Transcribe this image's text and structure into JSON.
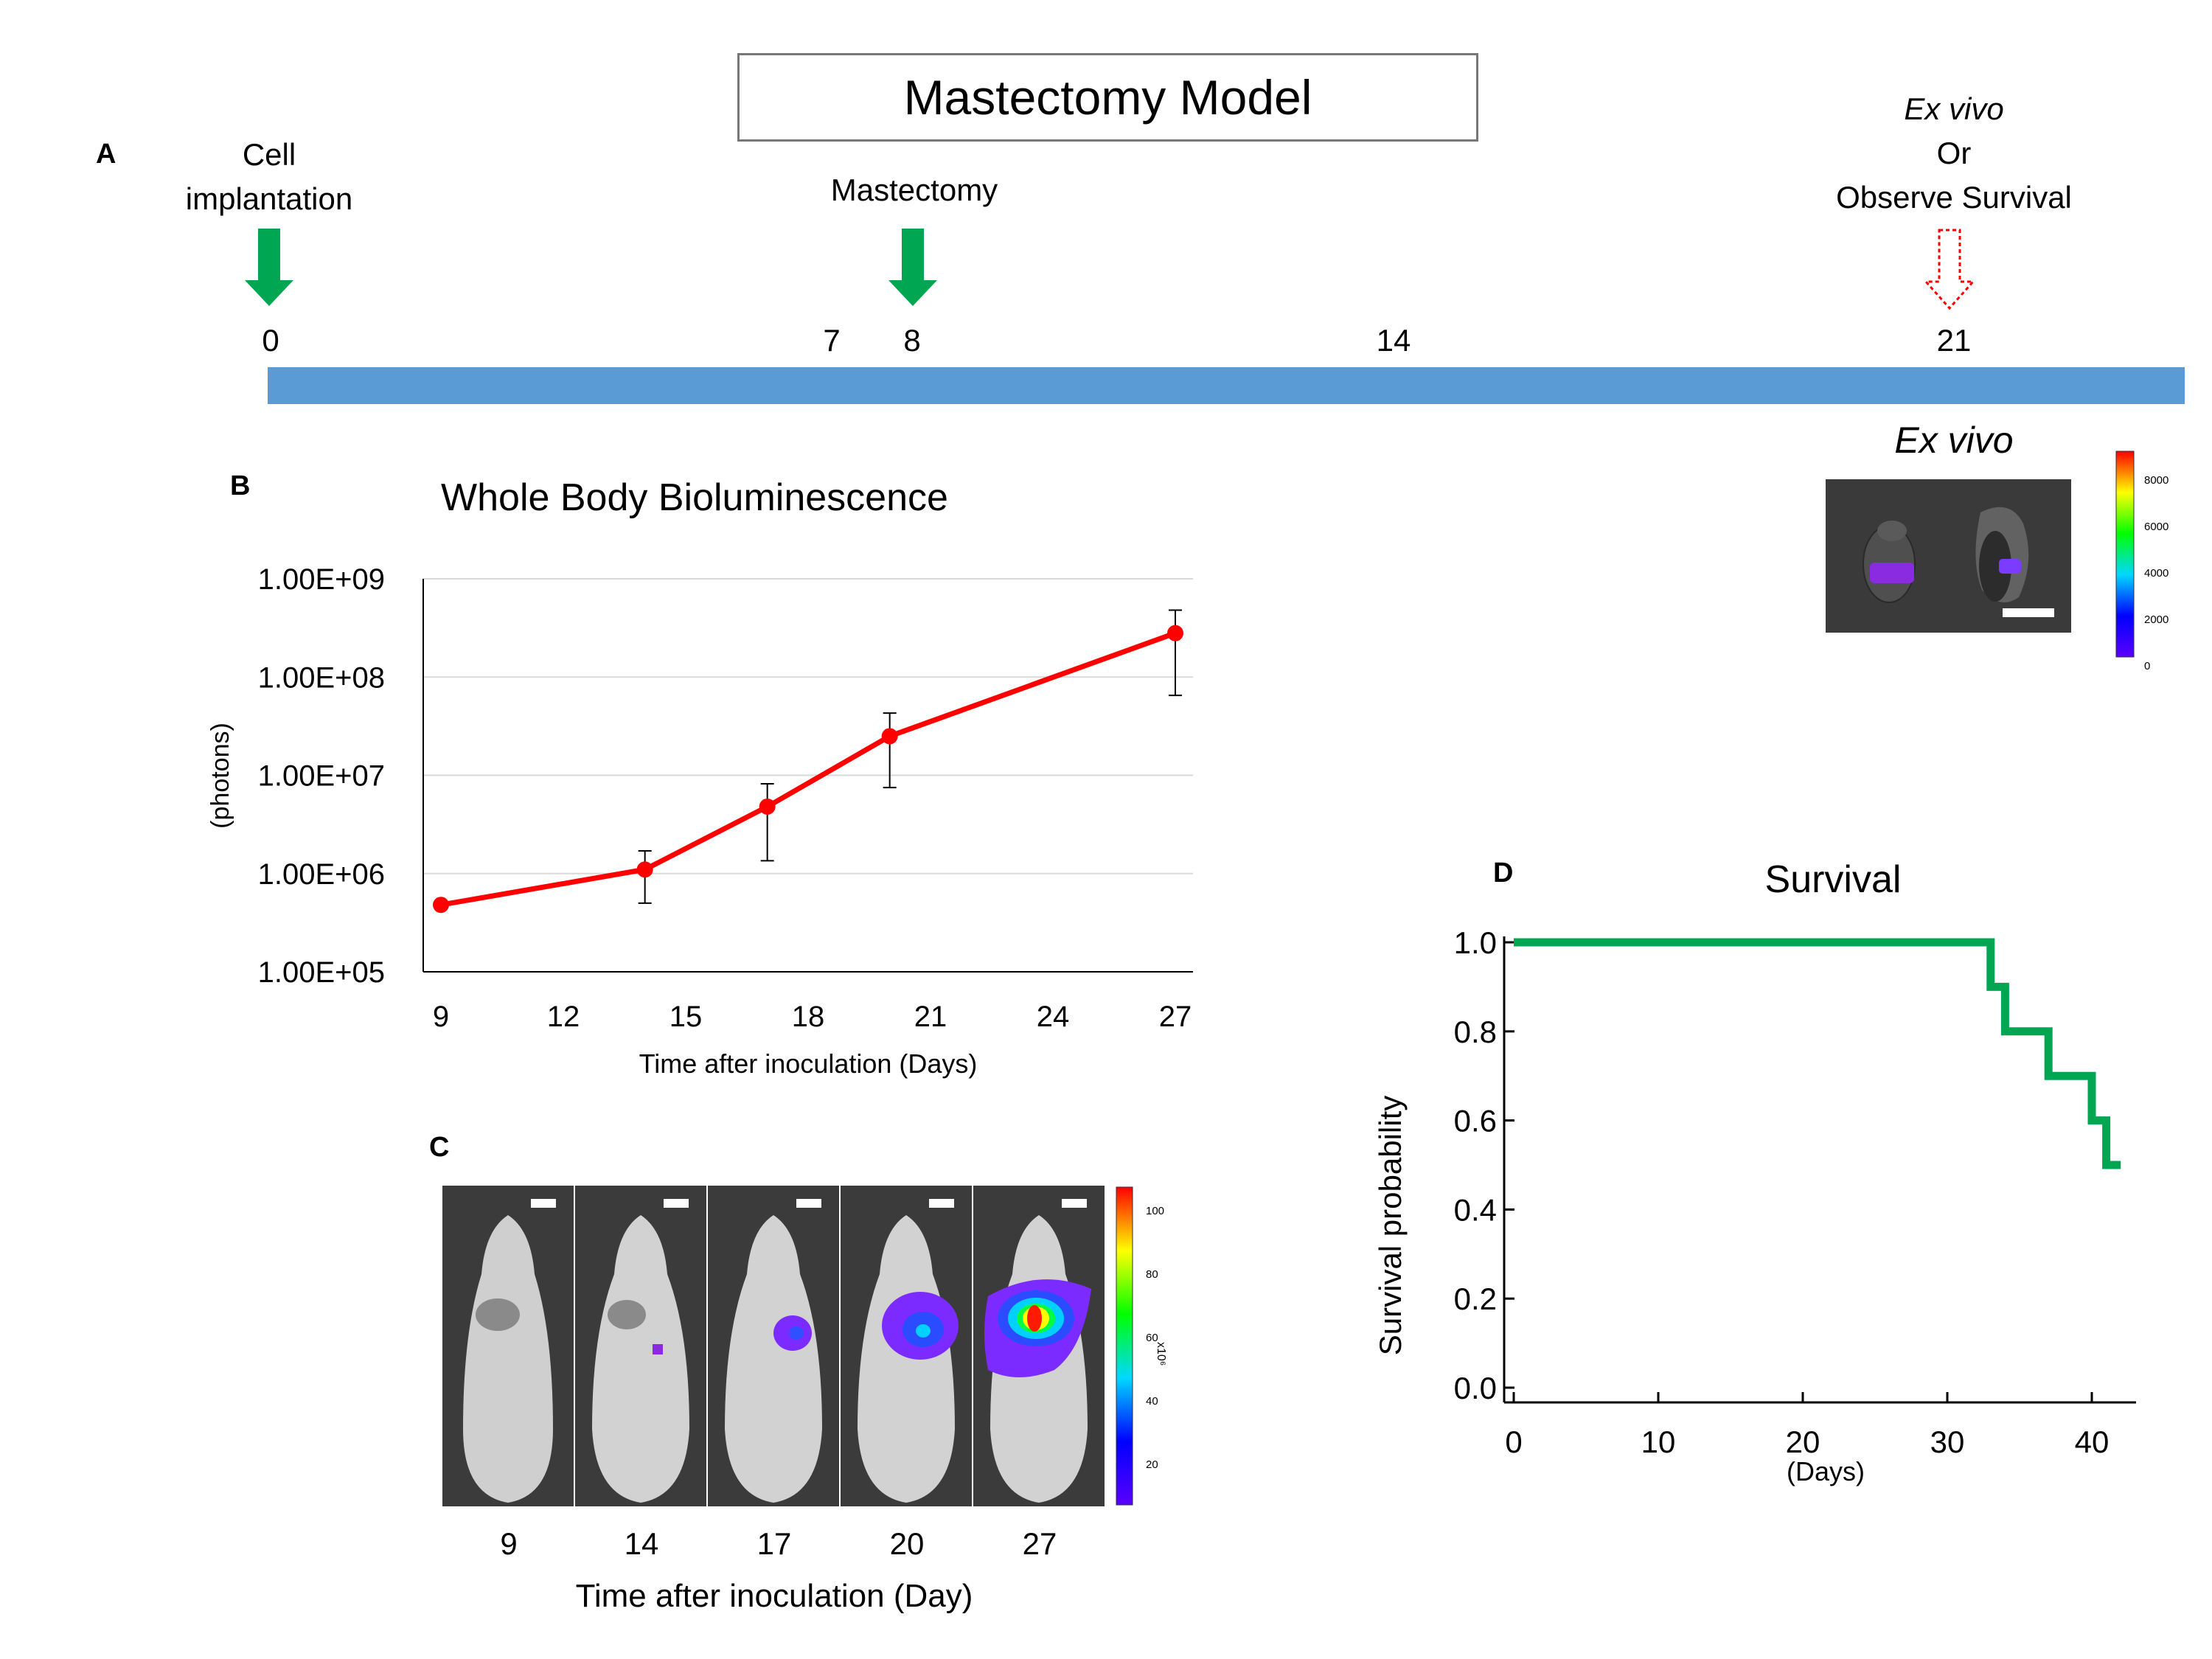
{
  "panel_a": {
    "letter": "A",
    "title": "Mastectomy Model",
    "events": [
      {
        "label": "Cell\nimplantation"
      },
      {
        "label": "Mastectomy"
      },
      {
        "label_italic": "Ex vivo",
        "label": "Or\nObserve Survival"
      }
    ],
    "days": [
      "0",
      "7",
      "8",
      "14",
      "21"
    ],
    "arrow_colors": {
      "solid": "#00a651",
      "dotted": "#ff0000"
    },
    "bar_color": "#5b9bd5"
  },
  "ex_vivo": {
    "title": "Ex vivo",
    "colorbar_ticks": [
      "8000",
      "6000",
      "4000",
      "2000",
      "0"
    ]
  },
  "panel_b": {
    "letter": "B",
    "chart_data": {
      "type": "line",
      "title": "Whole Body Bioluminescence",
      "xlabel": "Time after inoculation (Days)",
      "ylabel": "(photons)",
      "yscale": "log",
      "ylim": [
        100000,
        1000000000
      ],
      "xlim": [
        9,
        27
      ],
      "x_ticks": [
        "9",
        "12",
        "15",
        "18",
        "21",
        "24",
        "27"
      ],
      "y_ticks": [
        "1.00E+09",
        "1.00E+08",
        "1.00E+07",
        "1.00E+06",
        "1.00E+05"
      ],
      "series": [
        {
          "name": "Whole Body Bioluminescence",
          "color": "#ff0000",
          "x": [
            9,
            14,
            17,
            20,
            27
          ],
          "y": [
            480000,
            1100000,
            4800000,
            25000000,
            280000000
          ],
          "err_low": [
            480000,
            500000,
            1350000,
            7500000,
            65000000
          ],
          "err_high": [
            480000,
            1700000,
            8200000,
            43000000,
            480000000
          ]
        }
      ]
    }
  },
  "panel_c": {
    "letter": "C",
    "days": [
      "9",
      "14",
      "17",
      "20",
      "27"
    ],
    "xlabel": "Time after inoculation (Day)",
    "colorbar_ticks": [
      "100",
      "80",
      "60",
      "40",
      "20"
    ],
    "colorbar_unit": "x10⁶"
  },
  "panel_d": {
    "letter": "D",
    "chart_data": {
      "type": "line",
      "step": true,
      "title": "Survival",
      "xlabel": "(Days)",
      "ylabel": "Survival probability",
      "xlim": [
        0,
        43
      ],
      "ylim": [
        0,
        1.0
      ],
      "x_ticks": [
        "0",
        "10",
        "20",
        "30",
        "40"
      ],
      "y_ticks": [
        "1.0",
        "0.8",
        "0.6",
        "0.4",
        "0.2",
        "0.0"
      ],
      "series": [
        {
          "name": "Survival",
          "color": "#00a651",
          "x": [
            0,
            33,
            34,
            37,
            40,
            41,
            42
          ],
          "y": [
            1.0,
            0.9,
            0.8,
            0.7,
            0.6,
            0.5,
            0.5
          ]
        }
      ]
    }
  }
}
